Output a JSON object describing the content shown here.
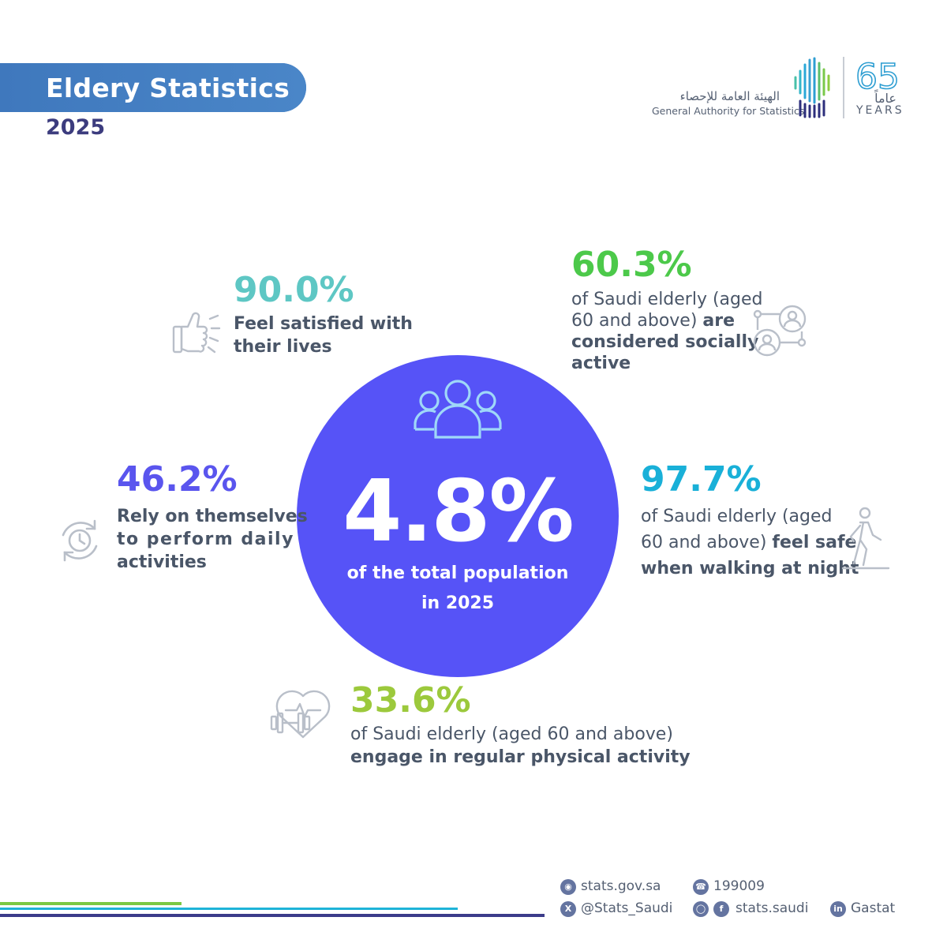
{
  "header": {
    "title": "Eldery Statistics",
    "year": "2025",
    "org_name_ar": "الهيئة العامة للإحصاء",
    "org_name_en": "General Authority for Statistics",
    "anniversary_number": "65",
    "anniversary_ar": "عاماً",
    "anniversary_en": "YEARS"
  },
  "center": {
    "value": "4.8%",
    "label_line1": "of the total population",
    "label_line2": "in 2025",
    "icon": "group-of-people-icon"
  },
  "stats": {
    "satisfied": {
      "value": "90.0%",
      "line1": "Feel satisfied with",
      "line2": "their lives",
      "color": "#5ec7c4",
      "icon": "thumbs-up-icon"
    },
    "social": {
      "value": "60.3%",
      "line1": "of Saudi elderly (aged",
      "line2_regular": "60 and above)",
      "line2_bold": "are",
      "line3": "considered socially",
      "line4": "active",
      "color": "#4cc94a",
      "icon": "social-network-icon"
    },
    "self_reliance": {
      "value": "46.2%",
      "line1": "Rely on themselves",
      "line2": "to perform daily",
      "line3": "activities",
      "color": "#5a55ee",
      "icon": "clock-cycle-icon"
    },
    "safety": {
      "value": "97.7%",
      "line1": "of Saudi elderly (aged",
      "line2_regular": "60 and above)",
      "line2_bold": "feel safe",
      "line3": "when walking at night",
      "color": "#19b0d8",
      "icon": "walking-person-icon"
    },
    "activity": {
      "value": "33.6%",
      "line1": "of Saudi elderly (aged 60 and above)",
      "line2": "engage in regular physical activity",
      "color": "#9cc93c",
      "icon": "heart-dumbbell-icon"
    }
  },
  "footer": {
    "website": "stats.gov.sa",
    "phone": "199009",
    "twitter": "@Stats_Saudi",
    "social": "stats.saudi",
    "linkedin": "Gastat"
  }
}
